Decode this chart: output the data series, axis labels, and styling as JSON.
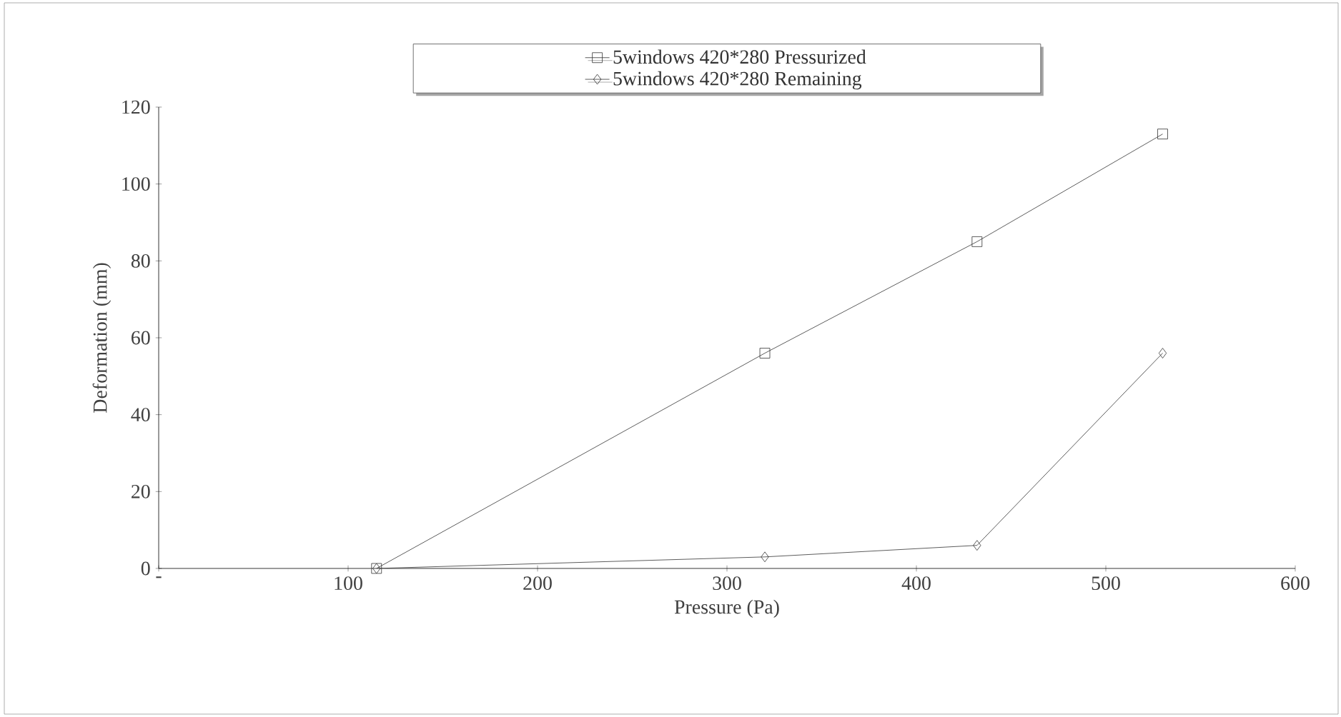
{
  "chart_data": {
    "type": "line",
    "xlabel": "Pressure (Pa)",
    "ylabel": "Deformation (mm)",
    "xlim": [
      0,
      600
    ],
    "xticks": [
      {
        "value": 0,
        "label": "-"
      },
      100,
      200,
      300,
      400,
      500,
      600
    ],
    "ylim": [
      0,
      120
    ],
    "yticks": [
      0,
      20,
      40,
      60,
      80,
      100,
      120
    ],
    "legend": "top",
    "grid": false,
    "line_style": "solid",
    "series": [
      {
        "name": "5windows 420*280 Pressurized",
        "color": "#333333",
        "marker": "square",
        "x": [
          115,
          320,
          432,
          530
        ],
        "values": [
          0,
          56,
          85,
          113
        ]
      },
      {
        "name": "5windows 420*280 Remaining",
        "color": "#333333",
        "marker": "diamond",
        "x": [
          115,
          320,
          432,
          530
        ],
        "values": [
          0,
          3,
          6,
          56
        ]
      }
    ]
  }
}
